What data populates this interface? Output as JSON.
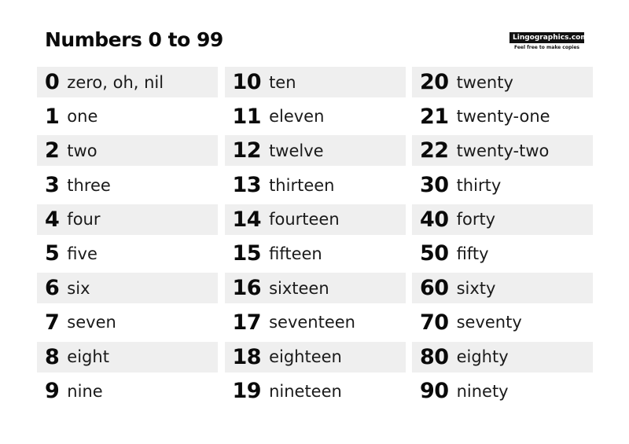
{
  "title": "Numbers 0 to 99",
  "brand": {
    "logo": "Lingographics.com",
    "tagline": "Feel free to make copies"
  },
  "columns": [
    [
      {
        "number": "0",
        "word": "zero, oh, nil"
      },
      {
        "number": "1",
        "word": "one"
      },
      {
        "number": "2",
        "word": "two"
      },
      {
        "number": "3",
        "word": "three"
      },
      {
        "number": "4",
        "word": "four"
      },
      {
        "number": "5",
        "word": "five"
      },
      {
        "number": "6",
        "word": "six"
      },
      {
        "number": "7",
        "word": "seven"
      },
      {
        "number": "8",
        "word": "eight"
      },
      {
        "number": "9",
        "word": "nine"
      }
    ],
    [
      {
        "number": "10",
        "word": "ten"
      },
      {
        "number": "11",
        "word": "eleven"
      },
      {
        "number": "12",
        "word": "twelve"
      },
      {
        "number": "13",
        "word": "thirteen"
      },
      {
        "number": "14",
        "word": "fourteen"
      },
      {
        "number": "15",
        "word": "fifteen"
      },
      {
        "number": "16",
        "word": "sixteen"
      },
      {
        "number": "17",
        "word": "seventeen"
      },
      {
        "number": "18",
        "word": "eighteen"
      },
      {
        "number": "19",
        "word": "nineteen"
      }
    ],
    [
      {
        "number": "20",
        "word": "twenty"
      },
      {
        "number": "21",
        "word": "twenty-one"
      },
      {
        "number": "22",
        "word": "twenty-two"
      },
      {
        "number": "30",
        "word": "thirty"
      },
      {
        "number": "40",
        "word": "forty"
      },
      {
        "number": "50",
        "word": "fifty"
      },
      {
        "number": "60",
        "word": "sixty"
      },
      {
        "number": "70",
        "word": "seventy"
      },
      {
        "number": "80",
        "word": "eighty"
      },
      {
        "number": "90",
        "word": "ninety"
      }
    ]
  ]
}
